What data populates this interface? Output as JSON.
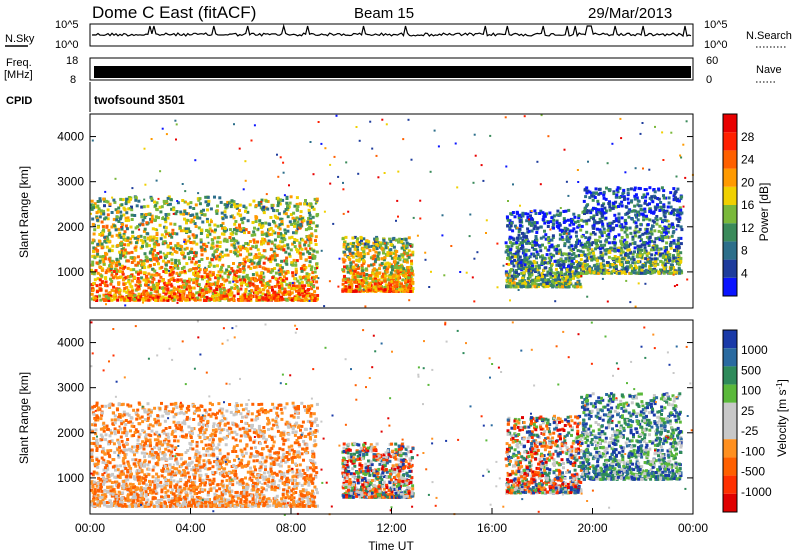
{
  "header": {
    "station": "Dome C East (fitACF)",
    "beam": "Beam 15",
    "date": "29/Mar/2013"
  },
  "left_labels": {
    "nsky": "N.Sky",
    "freq": "Freq.",
    "freq_unit": "[MHz]",
    "cpid": "CPID"
  },
  "right_labels": {
    "nsearch": "N.Search",
    "nave": "Nave"
  },
  "cpid_value": "twofsound 3501",
  "colors": {
    "power_scale": [
      "#0a14ff",
      "#1e3c9c",
      "#2c6e8a",
      "#3a8a5a",
      "#7ab83a",
      "#f0d000",
      "#ff9a00",
      "#ff6000",
      "#ff2000",
      "#e80000"
    ],
    "velocity_scale": [
      "#e00000",
      "#ff3000",
      "#ff6000",
      "#ff9020",
      "#c8c8c8",
      "#c8c8c8",
      "#5ab83a",
      "#2e8a5a",
      "#2a6aa0",
      "#1a3aa8"
    ],
    "velocity_fill": "#ff8a28"
  },
  "chart_data": [
    {
      "type": "line",
      "title": "",
      "ylabel": "N.Sky",
      "ticks_left": [
        "10^5",
        "10^0"
      ],
      "ticks_right": [
        "10^5",
        "10^0"
      ],
      "xlim": [
        0,
        24
      ],
      "yscale": "log",
      "note_right_axis": "N.Search"
    },
    {
      "type": "area",
      "ylabel": "Freq. [MHz]",
      "ticks_left": [
        "18",
        "8"
      ],
      "ticks_right": [
        "60",
        "0"
      ],
      "xlim": [
        0,
        24
      ],
      "approx_frequency_mhz": 10,
      "note_right_axis": "Nave"
    },
    {
      "type": "heatmap",
      "name": "power",
      "xlabel": "",
      "ylabel": "Slant Range [km]",
      "xlim": [
        0,
        24
      ],
      "ylim": [
        200,
        4500
      ],
      "yticks": [
        "1000",
        "2000",
        "3000",
        "4000"
      ],
      "colorbar": {
        "label": "Power [dB]",
        "ticks": [
          "4",
          "8",
          "12",
          "16",
          "20",
          "24",
          "28"
        ],
        "range": [
          0,
          32
        ]
      },
      "regions": [
        {
          "t0": 0.0,
          "t1": 9.0,
          "r0": 400,
          "r1": 2700,
          "level": "high"
        },
        {
          "t0": 10.0,
          "t1": 12.8,
          "r0": 600,
          "r1": 1800,
          "level": "high"
        },
        {
          "t0": 16.5,
          "t1": 19.5,
          "r0": 700,
          "r1": 2400,
          "level": "medium"
        },
        {
          "t0": 19.5,
          "t1": 23.5,
          "r0": 1000,
          "r1": 2900,
          "level": "medium"
        }
      ]
    },
    {
      "type": "heatmap",
      "name": "velocity",
      "xlabel": "Time UT",
      "ylabel": "Slant Range [km]",
      "xlim": [
        0,
        24
      ],
      "ylim": [
        200,
        4500
      ],
      "yticks": [
        "1000",
        "2000",
        "3000",
        "4000"
      ],
      "xticks": [
        "00:00",
        "04:00",
        "08:00",
        "12:00",
        "16:00",
        "20:00",
        "00:00"
      ],
      "colorbar": {
        "label": "Velocity [m s-1]",
        "label_main": "Velocity [m s",
        "label_sup": "-1",
        "label_end": "]",
        "ticks": [
          "1000",
          "500",
          "100",
          "25",
          "-25",
          "-100",
          "-500",
          "-1000"
        ]
      },
      "regions": [
        {
          "t0": 0.0,
          "t1": 9.0,
          "r0": 400,
          "r1": 2700,
          "level": "negative"
        },
        {
          "t0": 10.0,
          "t1": 12.8,
          "r0": 600,
          "r1": 1800,
          "level": "mixed"
        },
        {
          "t0": 16.5,
          "t1": 19.5,
          "r0": 700,
          "r1": 2400,
          "level": "mixed"
        },
        {
          "t0": 19.5,
          "t1": 23.5,
          "r0": 1000,
          "r1": 2900,
          "level": "positive"
        }
      ]
    }
  ]
}
